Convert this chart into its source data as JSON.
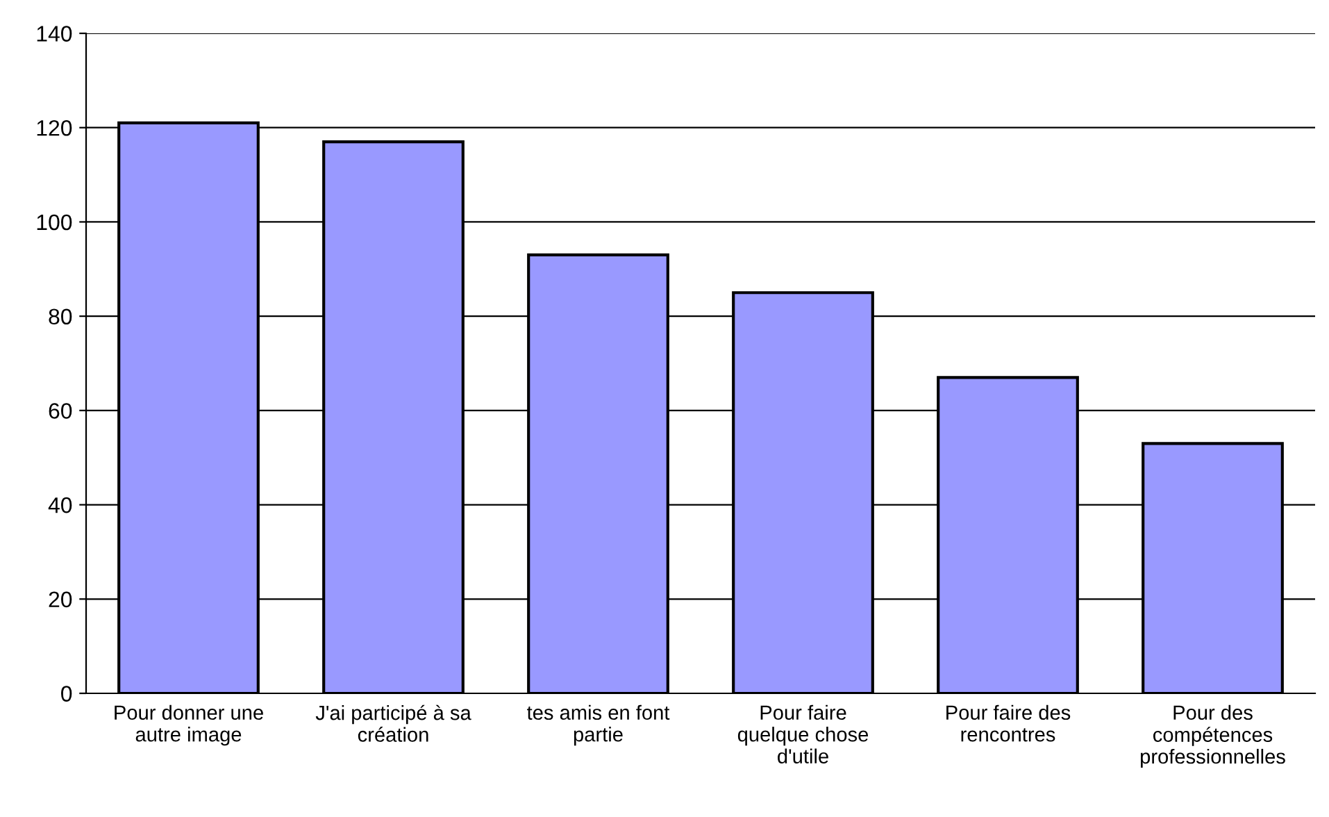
{
  "chart_data": {
    "type": "bar",
    "categories": [
      "Pour donner une\nautre image",
      "J'ai participé à sa\ncréation",
      "tes amis en font\npartie",
      "Pour faire\nquelque chose\nd'utile",
      "Pour faire des\nrencontres",
      "Pour des\ncompétences\nprofessionnelles"
    ],
    "values": [
      121,
      117,
      93,
      85,
      67,
      53
    ],
    "color": "#9999ff",
    "ylim": [
      0,
      140
    ],
    "yticks": [
      0,
      20,
      40,
      60,
      80,
      100,
      120,
      140
    ],
    "grid": "y",
    "legend": false
  }
}
